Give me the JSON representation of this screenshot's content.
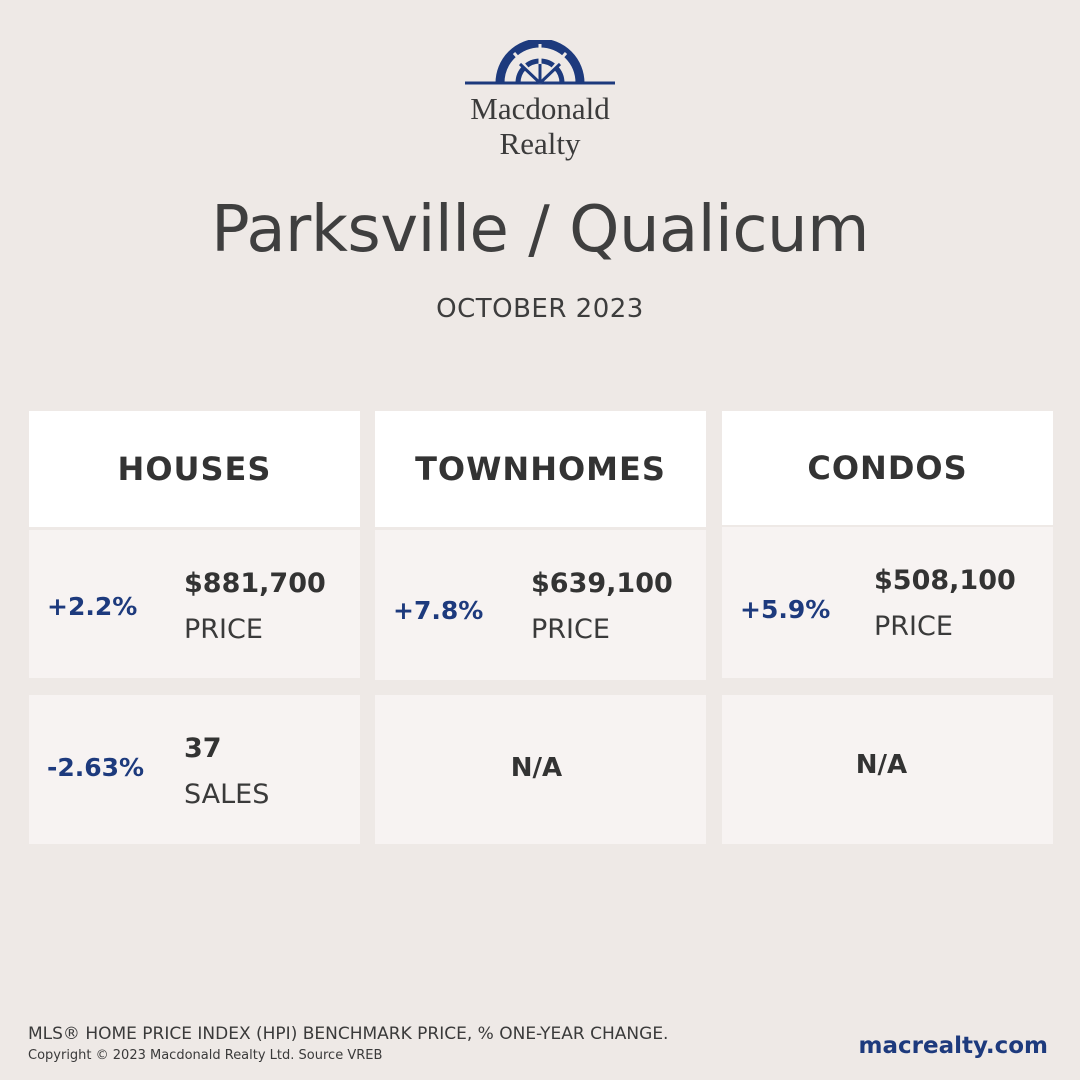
{
  "brand": {
    "name_line1": "Macdonald",
    "name_line2": "Realty",
    "logo_icon": "sunrise-window-logo-icon",
    "accent_color": "#1d3a7d"
  },
  "title": "Parksville / Qualicum",
  "subtitle": "OCTOBER 2023",
  "categories": [
    {
      "header": "HOUSES",
      "price": {
        "change": "+2.2%",
        "value": "$881,700",
        "label": "PRICE"
      },
      "sales": {
        "change": "-2.63%",
        "value": "37",
        "label": "SALES",
        "na": ""
      }
    },
    {
      "header": "TOWNHOMES",
      "price": {
        "change": "+7.8%",
        "value": "$639,100",
        "label": "PRICE"
      },
      "sales": {
        "na": "N/A"
      }
    },
    {
      "header": "CONDOS",
      "price": {
        "change": "+5.9%",
        "value": "$508,100",
        "label": "PRICE"
      },
      "sales": {
        "na": "N/A"
      }
    }
  ],
  "footer": {
    "note": "MLS® HOME PRICE INDEX (HPI) BENCHMARK PRICE, % ONE-YEAR CHANGE.",
    "copyright": "Copyright © 2023 Macdonald Realty Ltd. Source VREB",
    "website": "macrealty.com"
  }
}
